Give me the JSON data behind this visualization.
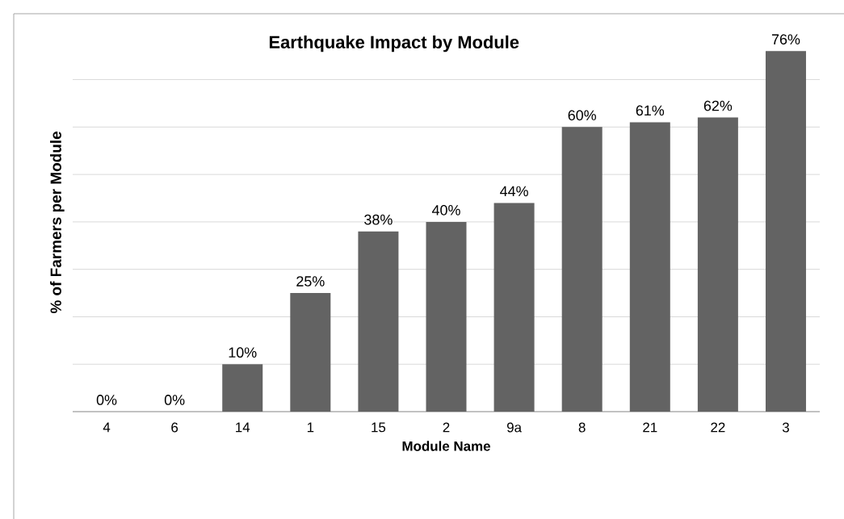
{
  "chart_data": {
    "type": "bar",
    "title": "Earthquake Impact by Module",
    "xlabel": "Module Name",
    "ylabel": "% of Farmers per Module",
    "categories": [
      "4",
      "6",
      "14",
      "1",
      "15",
      "2",
      "9a",
      "8",
      "21",
      "22",
      "3"
    ],
    "values": [
      0,
      0,
      10,
      25,
      38,
      40,
      44,
      60,
      61,
      62,
      76
    ],
    "value_labels": [
      "0%",
      "0%",
      "10%",
      "25%",
      "38%",
      "40%",
      "44%",
      "60%",
      "61%",
      "62%",
      "76%"
    ],
    "color": "#636363",
    "grid": "y",
    "tick_labels": "x"
  }
}
